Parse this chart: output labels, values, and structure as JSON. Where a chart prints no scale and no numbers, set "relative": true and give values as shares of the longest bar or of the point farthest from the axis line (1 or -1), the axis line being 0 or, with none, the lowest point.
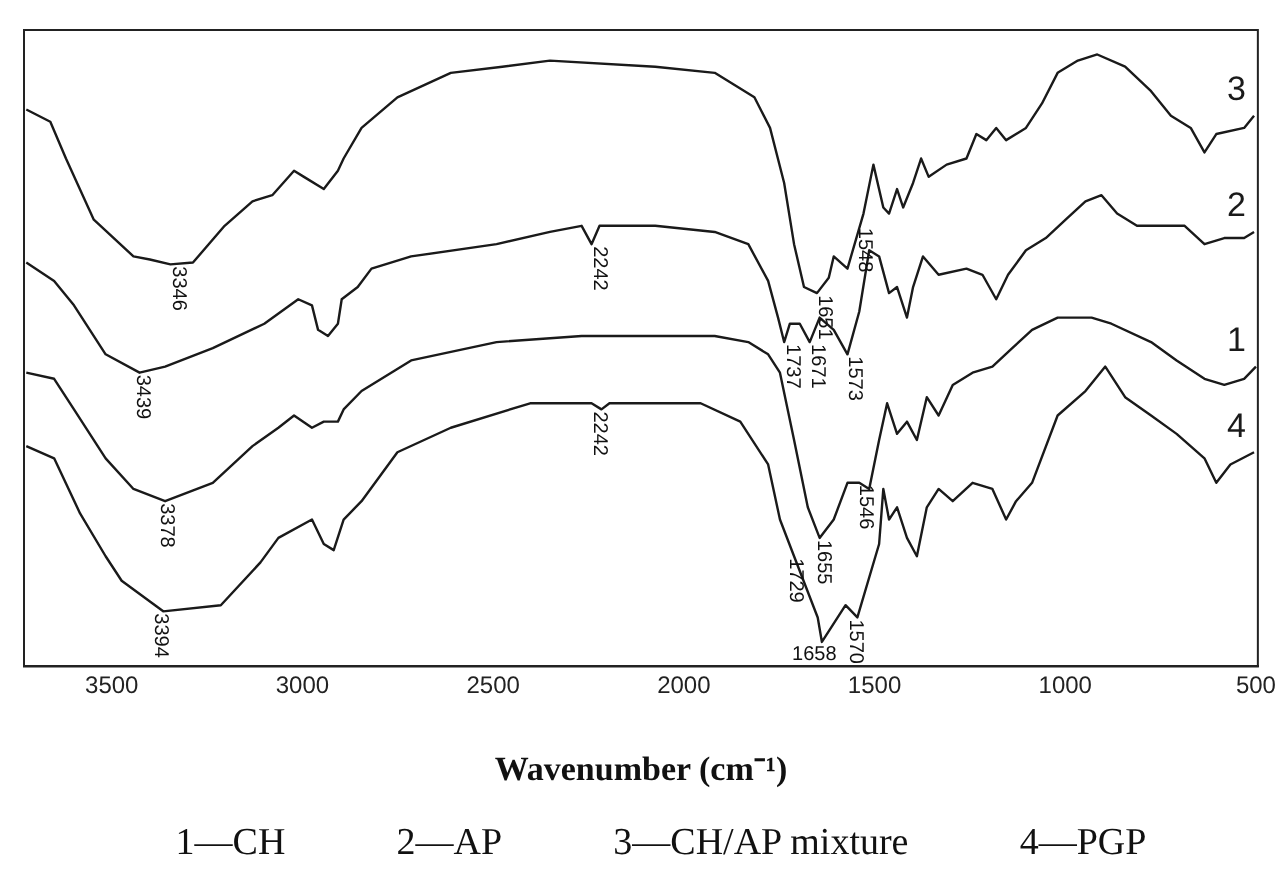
{
  "chart_data": {
    "type": "line",
    "relative": true,
    "xlabel": "Wavenumber (cm⁻¹)",
    "xlim": [
      3730,
      495
    ],
    "xticks": [
      3500,
      3000,
      2500,
      2000,
      1500,
      1000,
      500
    ],
    "grid": false,
    "legend": false,
    "marker": "none",
    "line_style": "solid",
    "series": [
      {
        "name": "3",
        "color": "#1a1a1a",
        "x": [
          3724,
          3661,
          3620,
          3547,
          3443,
          3400,
          3346,
          3287,
          3204,
          3131,
          3079,
          3022,
          2996,
          2944,
          2907,
          2892,
          2845,
          2751,
          2611,
          2476,
          2351,
          2075,
          1919,
          1815,
          1774,
          1737,
          1711,
          1685,
          1651,
          1620,
          1607,
          1571,
          1529,
          1503,
          1477,
          1462,
          1441,
          1425,
          1399,
          1378,
          1358,
          1311,
          1259,
          1233,
          1207,
          1181,
          1155,
          1103,
          1061,
          1020,
          967,
          916,
          843,
          775,
          723,
          671,
          635,
          604,
          531,
          505
        ],
        "values": [
          0.91,
          0.89,
          0.83,
          0.73,
          0.67,
          0.665,
          0.657,
          0.66,
          0.72,
          0.76,
          0.77,
          0.81,
          0.8,
          0.78,
          0.81,
          0.83,
          0.88,
          0.93,
          0.97,
          0.98,
          0.99,
          0.98,
          0.97,
          0.93,
          0.88,
          0.79,
          0.69,
          0.62,
          0.61,
          0.635,
          0.67,
          0.65,
          0.74,
          0.82,
          0.75,
          0.74,
          0.78,
          0.75,
          0.79,
          0.83,
          0.8,
          0.82,
          0.83,
          0.87,
          0.86,
          0.88,
          0.86,
          0.88,
          0.92,
          0.97,
          0.99,
          1,
          0.98,
          0.94,
          0.9,
          0.88,
          0.84,
          0.87,
          0.88,
          0.9
        ]
      },
      {
        "name": "2",
        "color": "#1a1a1a",
        "x": [
          3724,
          3651,
          3599,
          3516,
          3427,
          3360,
          3235,
          3100,
          3011,
          2975,
          2959,
          2933,
          2907,
          2897,
          2855,
          2819,
          2715,
          2491,
          2351,
          2268,
          2242,
          2221,
          2075,
          1919,
          1831,
          1779,
          1753,
          1737,
          1722,
          1696,
          1670,
          1644,
          1607,
          1571,
          1540,
          1514,
          1488,
          1462,
          1441,
          1415,
          1399,
          1373,
          1332,
          1259,
          1217,
          1181,
          1150,
          1103,
          1051,
          999,
          947,
          905,
          864,
          812,
          739,
          687,
          635,
          583,
          531,
          505
        ],
        "values": [
          0.66,
          0.63,
          0.59,
          0.51,
          0.48,
          0.49,
          0.52,
          0.56,
          0.6,
          0.59,
          0.55,
          0.54,
          0.56,
          0.6,
          0.62,
          0.65,
          0.67,
          0.69,
          0.71,
          0.72,
          0.69,
          0.72,
          0.72,
          0.71,
          0.69,
          0.63,
          0.57,
          0.53,
          0.56,
          0.56,
          0.53,
          0.57,
          0.55,
          0.51,
          0.58,
          0.68,
          0.67,
          0.61,
          0.62,
          0.57,
          0.62,
          0.67,
          0.64,
          0.65,
          0.64,
          0.6,
          0.64,
          0.68,
          0.7,
          0.73,
          0.76,
          0.77,
          0.74,
          0.72,
          0.72,
          0.72,
          0.69,
          0.7,
          0.7,
          0.71
        ]
      },
      {
        "name": "1",
        "color": "#1a1a1a",
        "x": [
          3724,
          3651,
          3599,
          3516,
          3443,
          3360,
          3235,
          3131,
          3063,
          3022,
          2975,
          2944,
          2907,
          2892,
          2845,
          2715,
          2491,
          2268,
          2075,
          1919,
          1831,
          1779,
          1748,
          1711,
          1675,
          1644,
          1607,
          1571,
          1540,
          1514,
          1488,
          1467,
          1441,
          1415,
          1389,
          1363,
          1332,
          1295,
          1243,
          1191,
          1139,
          1087,
          1020,
          931,
          879,
          775,
          708,
          635,
          583,
          531,
          500
        ],
        "values": [
          0.48,
          0.47,
          0.42,
          0.34,
          0.29,
          0.27,
          0.3,
          0.36,
          0.39,
          0.41,
          0.39,
          0.4,
          0.4,
          0.42,
          0.45,
          0.5,
          0.53,
          0.54,
          0.54,
          0.54,
          0.53,
          0.51,
          0.48,
          0.37,
          0.26,
          0.21,
          0.24,
          0.3,
          0.3,
          0.29,
          0.37,
          0.43,
          0.38,
          0.4,
          0.37,
          0.44,
          0.41,
          0.46,
          0.48,
          0.49,
          0.52,
          0.55,
          0.57,
          0.57,
          0.56,
          0.53,
          0.5,
          0.47,
          0.46,
          0.47,
          0.49
        ]
      },
      {
        "name": "4",
        "color": "#1a1a1a",
        "x": [
          3724,
          3651,
          3583,
          3516,
          3474,
          3365,
          3214,
          3110,
          3063,
          2975,
          2944,
          2918,
          2892,
          2845,
          2751,
          2611,
          2403,
          2320,
          2242,
          2216,
          2195,
          2075,
          1956,
          1852,
          1779,
          1748,
          1711,
          1649,
          1638,
          1576,
          1545,
          1488,
          1477,
          1462,
          1441,
          1415,
          1389,
          1363,
          1332,
          1295,
          1243,
          1191,
          1155,
          1129,
          1087,
          1020,
          947,
          895,
          843,
          775,
          708,
          635,
          604,
          567,
          505
        ],
        "values": [
          0.36,
          0.34,
          0.25,
          0.18,
          0.14,
          0.09,
          0.1,
          0.17,
          0.21,
          0.24,
          0.2,
          0.19,
          0.24,
          0.27,
          0.35,
          0.39,
          0.43,
          0.43,
          0.43,
          0.42,
          0.43,
          0.43,
          0.43,
          0.4,
          0.33,
          0.24,
          0.18,
          0.08,
          0.04,
          0.1,
          0.08,
          0.2,
          0.29,
          0.24,
          0.26,
          0.21,
          0.18,
          0.26,
          0.29,
          0.27,
          0.3,
          0.29,
          0.24,
          0.27,
          0.3,
          0.41,
          0.45,
          0.49,
          0.44,
          0.41,
          0.38,
          0.34,
          0.3,
          0.33,
          0.35
        ]
      }
    ],
    "annotations": [
      {
        "text": "3346",
        "x": 3346,
        "y": 0.657
      },
      {
        "text": "2242",
        "x": 2242,
        "y": 0.69
      },
      {
        "text": "1651",
        "x": 1651,
        "y": 0.61
      },
      {
        "text": "1548",
        "x": 1548,
        "y": 0.72
      },
      {
        "text": "3439",
        "x": 3439,
        "y": 0.48
      },
      {
        "text": "1737",
        "x": 1737,
        "y": 0.53
      },
      {
        "text": "1671",
        "x": 1671,
        "y": 0.53
      },
      {
        "text": "1573",
        "x": 1573,
        "y": 0.51
      },
      {
        "text": "3378",
        "x": 3378,
        "y": 0.27
      },
      {
        "text": "1655",
        "x": 1655,
        "y": 0.21
      },
      {
        "text": "1546",
        "x": 1546,
        "y": 0.3
      },
      {
        "text": "2242",
        "x": 2242,
        "y": 0.42
      },
      {
        "text": "1729",
        "x": 1729,
        "y": 0.18
      },
      {
        "text": "1658",
        "x": 1658,
        "y": 0.04
      },
      {
        "text": "1570",
        "x": 1570,
        "y": 0.08
      },
      {
        "text": "3394",
        "x": 3394,
        "y": 0.09
      },
      "1—CH",
      "2—AP",
      "3—CH/AP mixture",
      "4—PGP"
    ]
  }
}
